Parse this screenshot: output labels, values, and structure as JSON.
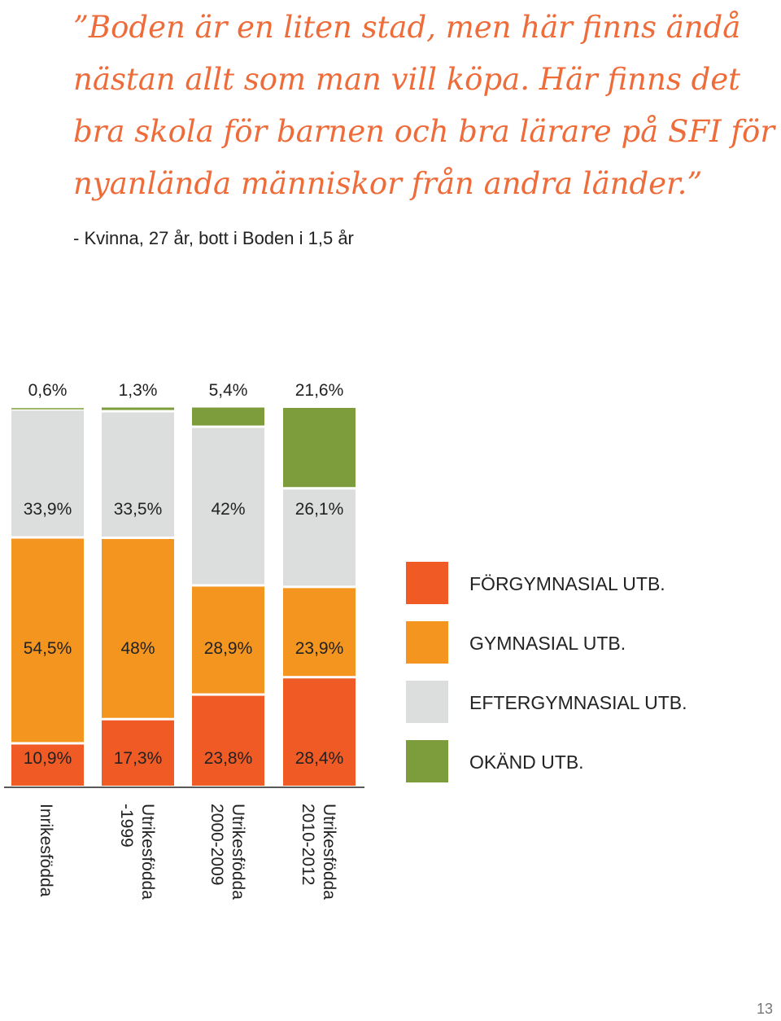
{
  "quote": {
    "lines": [
      "”Boden är en liten stad, men här finns ändå",
      "nästan allt som man vill köpa. Här finns det",
      "bra skola för barnen och bra lärare på SFI för",
      "nyanlända människor från andra länder.”"
    ],
    "color": "#ee6b3a"
  },
  "attribution": "- Kvinna, 27 år, bott i Boden i 1,5 år",
  "page_number": "13",
  "chart_data": {
    "type": "bar",
    "stacked": true,
    "normalized_to": 100,
    "categories": [
      [
        "Inrikesfödda"
      ],
      [
        "Utrikesfödda",
        "-1999"
      ],
      [
        "Utrikesfödda",
        "2000-2009"
      ],
      [
        "Utrikesfödda",
        "2010-2012"
      ]
    ],
    "series": [
      {
        "name": "FÖRGYMNASIAL UTB.",
        "color": "#ef5a25",
        "values": [
          10.9,
          17.3,
          23.8,
          28.4
        ],
        "labels": [
          "10,9%",
          "17,3%",
          "23,8%",
          "28,4%"
        ]
      },
      {
        "name": "GYMNASIAL UTB.",
        "color": "#f49520",
        "values": [
          54.5,
          48,
          28.9,
          23.9
        ],
        "labels": [
          "54,5%",
          "48%",
          "28,9%",
          "23,9%"
        ]
      },
      {
        "name": "EFTERGYMNASIAL UTB.",
        "color": "#dcdedd",
        "values": [
          33.9,
          33.5,
          42,
          26.1
        ],
        "labels": [
          "33,9%",
          "33,5%",
          "42%",
          "26,1%"
        ]
      },
      {
        "name": "OKÄND UTB.",
        "color": "#7d9d3d",
        "values": [
          0.6,
          1.3,
          5.4,
          21.6
        ],
        "labels": [
          "0,6%",
          "1,3%",
          "5,4%",
          "21,6%"
        ]
      }
    ],
    "legend": {
      "placement": "right",
      "order": [
        "FÖRGYMNASIAL UTB.",
        "GYMNASIAL UTB.",
        "EFTERGYMNASIAL UTB.",
        "OKÄND UTB."
      ]
    }
  }
}
